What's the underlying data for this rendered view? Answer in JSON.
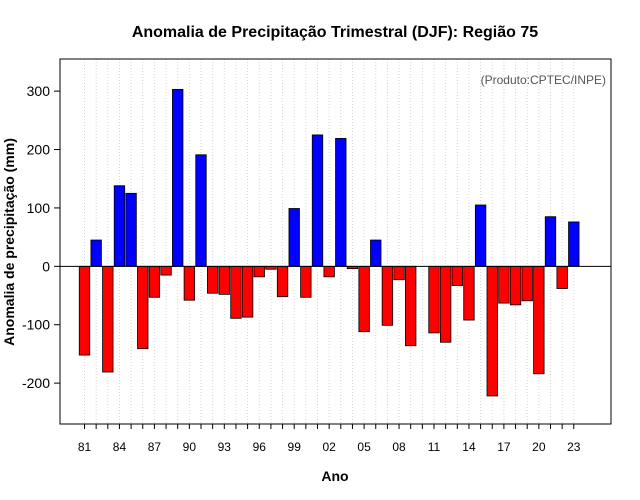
{
  "chart_data": {
    "type": "bar",
    "title": "Anomalia de Precipitação Trimestral (DJF): Região 75",
    "xlabel": "Ano",
    "ylabel": "Anomalia de precipitação (mm)",
    "annotation": "(Produto:CPTEC/INPE)",
    "ylim": [
      -270,
      355
    ],
    "yticks": [
      -200,
      -100,
      0,
      100,
      200,
      300
    ],
    "xtick_labels": [
      "81",
      "84",
      "87",
      "90",
      "93",
      "96",
      "99",
      "02",
      "05",
      "08",
      "11",
      "14",
      "17",
      "20",
      "23"
    ],
    "years": [
      "81",
      "82",
      "83",
      "84",
      "85",
      "86",
      "87",
      "88",
      "89",
      "90",
      "91",
      "92",
      "93",
      "94",
      "95",
      "96",
      "97",
      "98",
      "99",
      "00",
      "01",
      "02",
      "03",
      "04",
      "05",
      "06",
      "07",
      "08",
      "09",
      "10",
      "11",
      "12",
      "13",
      "14",
      "15",
      "16",
      "17",
      "18",
      "19",
      "20",
      "21",
      "22",
      "23"
    ],
    "values": [
      -152,
      45,
      -181,
      138,
      125,
      -141,
      -53,
      -15,
      303,
      -58,
      191,
      -46,
      -48,
      -89,
      -87,
      -18,
      -5,
      -52,
      99,
      -53,
      225,
      -18,
      219,
      -4,
      -112,
      45,
      -101,
      -23,
      -136,
      0,
      -114,
      -130,
      -33,
      -92,
      105,
      -222,
      -63,
      -66,
      -59,
      -184,
      85,
      -38,
      76
    ],
    "grid": true,
    "colors": {
      "positive": "#0000ff",
      "negative": "#ff0000",
      "bar_edge": "#000000",
      "grid": "#d3d3d3",
      "zero_line": "#000000",
      "annotation": "#555555"
    }
  }
}
